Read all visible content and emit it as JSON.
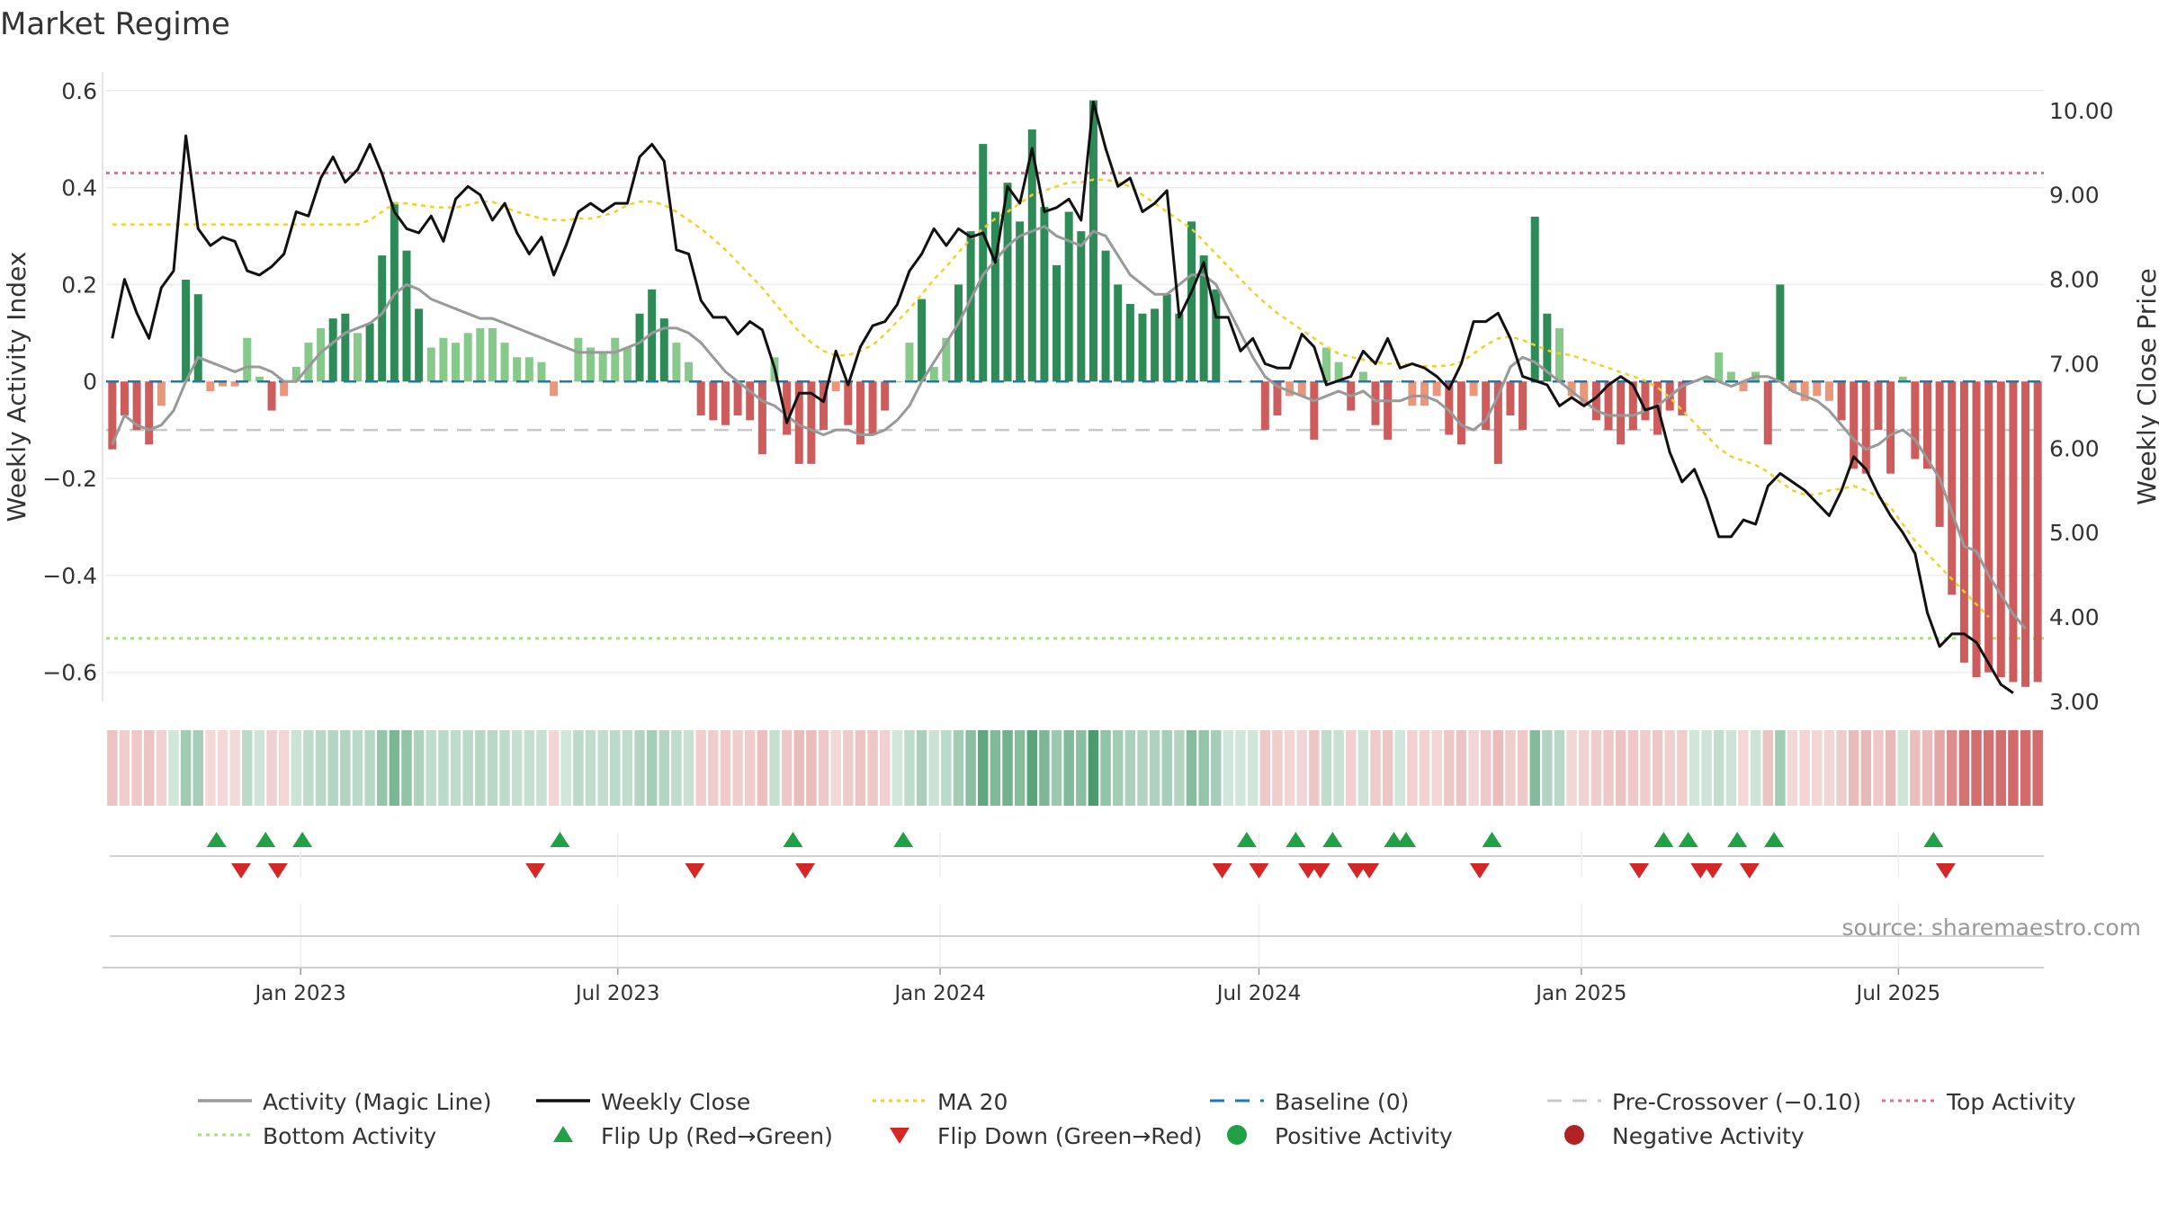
{
  "chart_data": {
    "type": "bar",
    "title": "Market Regime",
    "ylabel": "Weekly Activity Index",
    "y2label": "Weekly Close Price",
    "source": "source: sharemaestro.com",
    "ylim": [
      -0.66,
      0.62
    ],
    "y2lim": [
      3.0,
      10.35
    ],
    "y_ticks": [
      "0.6",
      "0.4",
      "0.2",
      "0",
      "−0.2",
      "−0.4",
      "−0.6"
    ],
    "y_tick_values": [
      0.6,
      0.4,
      0.2,
      0,
      -0.2,
      -0.4,
      -0.6
    ],
    "y2_ticks": [
      "10.00",
      "9.00",
      "8.00",
      "7.00",
      "6.00",
      "5.00",
      "4.00",
      "3.00"
    ],
    "y2_tick_values": [
      10,
      9,
      8,
      7,
      6,
      5,
      4,
      3
    ],
    "x_ticks": [
      {
        "label": "Jan 2023",
        "date": "2023-01-01"
      },
      {
        "label": "Jul 2023",
        "date": "2023-07-01"
      },
      {
        "label": "Jan 2024",
        "date": "2024-01-01"
      },
      {
        "label": "Jul 2024",
        "date": "2024-07-01"
      },
      {
        "label": "Jan 2025",
        "date": "2025-01-01"
      },
      {
        "label": "Jul 2025",
        "date": "2025-07-01"
      }
    ],
    "x_range": [
      "2022-09-12",
      "2025-09-22"
    ],
    "reference_lines": {
      "baseline": 0,
      "pre_crossover": -0.1,
      "top_activity": 0.43,
      "bottom_activity": -0.53
    },
    "colors": {
      "strong_positive": "#2e8b57",
      "weak_positive": "#86c98a",
      "strong_negative": "#cd5c5c",
      "weak_negative": "#e9967a",
      "activity_line": "#999999",
      "weekly_close": "#111111",
      "ma20": "#f2d024",
      "baseline": "#1f77b4",
      "pre_crossover": "#c8c8c8",
      "top_activity": "#e36d8a",
      "bottom_activity": "#a6e07a",
      "flip_up": "#22a045",
      "flip_down": "#d42828",
      "positive_activity": "#22a045",
      "negative_activity": "#b22222"
    },
    "series": [
      {
        "name": "Weekly Activity Index",
        "kind": "bars",
        "values": [
          -0.14,
          -0.07,
          -0.1,
          -0.13,
          -0.05,
          0.0,
          0.21,
          0.18,
          -0.02,
          -0.01,
          -0.01,
          0.09,
          0.01,
          -0.06,
          -0.03,
          0.03,
          0.08,
          0.11,
          0.13,
          0.14,
          0.1,
          0.12,
          0.26,
          0.37,
          0.27,
          0.15,
          0.07,
          0.09,
          0.08,
          0.1,
          0.11,
          0.11,
          0.08,
          0.05,
          0.05,
          0.04,
          -0.03,
          0.0,
          0.09,
          0.07,
          0.06,
          0.09,
          0.07,
          0.14,
          0.19,
          0.13,
          0.08,
          0.04,
          -0.07,
          -0.08,
          -0.09,
          -0.07,
          -0.08,
          -0.15,
          0.05,
          -0.11,
          -0.17,
          -0.17,
          -0.1,
          -0.02,
          -0.09,
          -0.13,
          -0.11,
          -0.06,
          0.0,
          0.08,
          0.17,
          0.03,
          0.09,
          0.2,
          0.31,
          0.49,
          0.35,
          0.41,
          0.33,
          0.52,
          0.36,
          0.24,
          0.35,
          0.31,
          0.58,
          0.27,
          0.2,
          0.16,
          0.14,
          0.15,
          0.18,
          0.14,
          0.33,
          0.26,
          0.19,
          0.0,
          0.0,
          0.0,
          -0.1,
          -0.07,
          -0.03,
          -0.03,
          -0.12,
          0.07,
          0.04,
          -0.06,
          0.02,
          -0.09,
          -0.12,
          0.0,
          -0.05,
          -0.05,
          -0.03,
          -0.11,
          -0.13,
          -0.03,
          -0.1,
          -0.17,
          -0.07,
          -0.1,
          0.34,
          0.14,
          0.11,
          -0.03,
          -0.05,
          -0.08,
          -0.1,
          -0.13,
          -0.1,
          -0.08,
          -0.11,
          -0.06,
          -0.07,
          0.0,
          0.01,
          0.06,
          0.02,
          -0.02,
          0.02,
          -0.13,
          0.2,
          -0.02,
          -0.04,
          -0.03,
          -0.04,
          -0.08,
          -0.18,
          -0.19,
          -0.1,
          -0.19,
          0.01,
          -0.16,
          -0.18,
          -0.3,
          -0.44,
          -0.58,
          -0.61,
          -0.6,
          -0.61,
          -0.62,
          -0.63,
          -0.62
        ]
      },
      {
        "name": "Weekly Close",
        "kind": "line",
        "values": [
          7.3,
          8.0,
          7.6,
          7.3,
          7.9,
          8.1,
          9.7,
          8.6,
          8.4,
          8.5,
          8.45,
          8.1,
          8.05,
          8.15,
          8.3,
          8.8,
          8.75,
          9.2,
          9.45,
          9.15,
          9.3,
          9.6,
          9.25,
          8.8,
          8.6,
          8.55,
          8.75,
          8.45,
          8.95,
          9.1,
          9.0,
          8.7,
          8.9,
          8.55,
          8.3,
          8.5,
          8.05,
          8.4,
          8.8,
          8.9,
          8.8,
          8.9,
          8.9,
          9.45,
          9.6,
          9.4,
          8.35,
          8.3,
          7.75,
          7.55,
          7.55,
          7.35,
          7.5,
          7.4,
          6.95,
          6.3,
          6.65,
          6.65,
          6.55,
          7.15,
          6.75,
          7.2,
          7.45,
          7.5,
          7.7,
          8.1,
          8.3,
          8.6,
          8.4,
          8.6,
          8.5,
          8.55,
          8.2,
          9.1,
          8.9,
          9.55,
          8.8,
          8.85,
          8.95,
          8.7,
          10.1,
          9.55,
          9.1,
          9.2,
          8.8,
          8.9,
          9.05,
          7.55,
          7.85,
          8.2,
          7.55,
          7.55,
          7.15,
          7.3,
          7.0,
          6.95,
          6.95,
          7.35,
          7.2,
          6.75,
          6.8,
          6.85,
          7.15,
          7.0,
          7.3,
          6.95,
          7.0,
          6.95,
          6.85,
          6.7,
          7.0,
          7.5,
          7.5,
          7.6,
          7.3,
          6.85,
          6.8,
          6.75,
          6.5,
          6.6,
          6.5,
          6.6,
          6.75,
          6.85,
          6.75,
          6.45,
          6.5,
          5.95,
          5.6,
          5.75,
          5.4,
          4.95,
          4.95,
          5.15,
          5.1,
          5.55,
          5.7,
          5.6,
          5.5,
          5.35,
          5.2,
          5.5,
          5.9,
          5.75,
          5.45,
          5.2,
          5.0,
          4.75,
          4.05,
          3.65,
          3.8,
          3.8,
          3.7,
          3.45,
          3.2,
          3.1
        ]
      },
      {
        "name": "Activity (Magic Line)",
        "kind": "line",
        "values": [
          -0.13,
          -0.07,
          -0.09,
          -0.1,
          -0.09,
          -0.06,
          0.0,
          0.05,
          0.04,
          0.03,
          0.02,
          0.03,
          0.03,
          0.02,
          0.0,
          0.0,
          0.03,
          0.06,
          0.08,
          0.1,
          0.11,
          0.12,
          0.14,
          0.18,
          0.2,
          0.19,
          0.17,
          0.16,
          0.15,
          0.14,
          0.13,
          0.13,
          0.12,
          0.11,
          0.1,
          0.09,
          0.08,
          0.07,
          0.06,
          0.06,
          0.06,
          0.06,
          0.07,
          0.08,
          0.1,
          0.11,
          0.11,
          0.1,
          0.08,
          0.05,
          0.02,
          0.0,
          -0.02,
          -0.04,
          -0.05,
          -0.07,
          -0.09,
          -0.1,
          -0.11,
          -0.1,
          -0.1,
          -0.11,
          -0.11,
          -0.1,
          -0.08,
          -0.05,
          0.0,
          0.04,
          0.08,
          0.12,
          0.17,
          0.22,
          0.25,
          0.28,
          0.3,
          0.31,
          0.32,
          0.3,
          0.29,
          0.28,
          0.31,
          0.3,
          0.26,
          0.22,
          0.2,
          0.18,
          0.18,
          0.2,
          0.22,
          0.22,
          0.2,
          0.15,
          0.1,
          0.05,
          0.01,
          -0.01,
          -0.02,
          -0.03,
          -0.04,
          -0.03,
          -0.02,
          -0.03,
          -0.02,
          -0.04,
          -0.04,
          -0.04,
          -0.03,
          -0.03,
          -0.04,
          -0.06,
          -0.09,
          -0.1,
          -0.08,
          -0.03,
          0.03,
          0.05,
          0.04,
          0.02,
          0.0,
          -0.02,
          -0.04,
          -0.06,
          -0.07,
          -0.07,
          -0.07,
          -0.06,
          -0.05,
          -0.03,
          -0.01,
          0.0,
          0.01,
          0.0,
          -0.01,
          0.0,
          0.01,
          0.01,
          0.0,
          -0.02,
          -0.03,
          -0.04,
          -0.06,
          -0.09,
          -0.12,
          -0.14,
          -0.13,
          -0.11,
          -0.1,
          -0.12,
          -0.16,
          -0.2,
          -0.27,
          -0.34,
          -0.35,
          -0.4,
          -0.44,
          -0.48,
          -0.51
        ]
      },
      {
        "name": "MA 20",
        "kind": "line",
        "values": [
          8.65,
          8.65,
          8.65,
          8.65,
          8.65,
          8.65,
          8.65,
          8.65,
          8.65,
          8.65,
          8.65,
          8.65,
          8.65,
          8.65,
          8.65,
          8.65,
          8.65,
          8.65,
          8.65,
          8.65,
          8.65,
          8.7,
          8.8,
          8.9,
          8.9,
          8.88,
          8.86,
          8.85,
          8.85,
          8.88,
          8.92,
          8.92,
          8.85,
          8.8,
          8.76,
          8.72,
          8.7,
          8.7,
          8.72,
          8.72,
          8.75,
          8.8,
          8.88,
          8.92,
          8.92,
          8.88,
          8.8,
          8.7,
          8.6,
          8.48,
          8.35,
          8.2,
          8.05,
          7.9,
          7.72,
          7.55,
          7.38,
          7.25,
          7.15,
          7.1,
          7.1,
          7.15,
          7.22,
          7.35,
          7.5,
          7.65,
          7.82,
          8.0,
          8.15,
          8.32,
          8.48,
          8.6,
          8.72,
          8.8,
          8.9,
          9.0,
          9.05,
          9.1,
          9.15,
          9.15,
          9.18,
          9.18,
          9.15,
          9.1,
          9.0,
          8.9,
          8.8,
          8.7,
          8.6,
          8.45,
          8.3,
          8.15,
          8.0,
          7.85,
          7.72,
          7.6,
          7.5,
          7.4,
          7.3,
          7.2,
          7.12,
          7.08,
          7.05,
          7.02,
          7.0,
          7.0,
          6.98,
          6.97,
          6.97,
          6.98,
          7.02,
          7.12,
          7.22,
          7.3,
          7.32,
          7.28,
          7.22,
          7.16,
          7.12,
          7.1,
          7.05,
          7.0,
          6.95,
          6.9,
          6.85,
          6.8,
          6.72,
          6.6,
          6.45,
          6.3,
          6.15,
          6.0,
          5.9,
          5.85,
          5.8,
          5.72,
          5.6,
          5.5,
          5.45,
          5.45,
          5.5,
          5.52,
          5.55,
          5.5,
          5.42,
          5.3,
          5.1,
          4.9,
          4.75,
          4.6,
          4.45,
          4.3,
          4.15,
          4.0
        ]
      }
    ],
    "flip_up_dates": [
      "2022-11-14",
      "2022-12-12",
      "2023-01-02",
      "2023-05-29",
      "2023-10-09",
      "2023-12-11",
      "2024-06-24",
      "2024-07-22",
      "2024-08-12",
      "2024-09-16",
      "2024-09-23",
      "2024-11-11",
      "2025-02-17",
      "2025-03-03",
      "2025-03-31",
      "2025-04-21",
      "2025-07-21"
    ],
    "flip_down_dates": [
      "2022-11-28",
      "2022-12-19",
      "2023-05-15",
      "2023-08-14",
      "2023-10-16",
      "2024-06-10",
      "2024-07-01",
      "2024-07-29",
      "2024-08-05",
      "2024-08-26",
      "2024-09-02",
      "2024-11-04",
      "2025-02-03",
      "2025-03-10",
      "2025-03-17",
      "2025-04-07",
      "2025-07-28"
    ]
  },
  "legend": [
    {
      "key": "activity",
      "label": "Activity (Magic Line)",
      "color": "#999999",
      "style": "line"
    },
    {
      "key": "close",
      "label": "Weekly Close",
      "color": "#111111",
      "style": "line"
    },
    {
      "key": "ma20",
      "label": "MA 20",
      "color": "#f2d024",
      "style": "dotted"
    },
    {
      "key": "baseline",
      "label": "Baseline (0)",
      "color": "#1f77b4",
      "style": "dashed"
    },
    {
      "key": "precross",
      "label": "Pre-Crossover (−0.10)",
      "color": "#c8c8c8",
      "style": "dashed"
    },
    {
      "key": "top",
      "label": "Top Activity",
      "color": "#e36d8a",
      "style": "dotted"
    },
    {
      "key": "bottom",
      "label": "Bottom Activity",
      "color": "#a6e07a",
      "style": "dotted"
    },
    {
      "key": "flipup",
      "label": "Flip Up (Red→Green)",
      "color": "#22a045",
      "style": "triangle-up"
    },
    {
      "key": "flipdown",
      "label": "Flip Down (Green→Red)",
      "color": "#d42828",
      "style": "triangle-down"
    },
    {
      "key": "pos",
      "label": "Positive Activity",
      "color": "#22a045",
      "style": "circle"
    },
    {
      "key": "neg",
      "label": "Negative Activity",
      "color": "#b22222",
      "style": "circle"
    }
  ]
}
